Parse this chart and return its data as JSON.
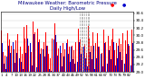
{
  "title": "Milwaukee Weather: Barometric Pressure",
  "subtitle": "Daily High/Low",
  "y_min": 29.0,
  "y_max": 30.65,
  "yticks": [
    29.0,
    29.2,
    29.4,
    29.6,
    29.8,
    30.0,
    30.2,
    30.4,
    30.6
  ],
  "bar_color_high": "#ff0000",
  "bar_color_low": "#0000cc",
  "background_color": "#ffffff",
  "plot_bg": "#ffffff",
  "highs": [
    30.12,
    29.55,
    29.45,
    29.75,
    30.05,
    29.88,
    29.72,
    30.18,
    29.62,
    29.85,
    30.02,
    29.78,
    29.68,
    29.48,
    30.22,
    29.92,
    30.28,
    29.72,
    30.12,
    29.55,
    30.38,
    30.08,
    29.52,
    30.18,
    29.88,
    29.65,
    29.95,
    29.82,
    30.08,
    29.72,
    29.48,
    29.38,
    29.92,
    30.22,
    30.32,
    29.82,
    29.65,
    30.08,
    29.52,
    29.78,
    29.62,
    30.12,
    29.88,
    29.68,
    30.02,
    29.72,
    29.58,
    29.82,
    29.62,
    30.18,
    29.88,
    29.68,
    30.02,
    29.75,
    29.52,
    30.25,
    29.92,
    29.72,
    30.08,
    29.48,
    29.78,
    30.05,
    29.68,
    29.88,
    29.52,
    30.15,
    29.82,
    29.62,
    29.98,
    29.72,
    29.88,
    30.18,
    29.58,
    29.78,
    30.08,
    29.92,
    29.75,
    30.05,
    29.62,
    29.85,
    30.12,
    29.72,
    29.55,
    30.15
  ],
  "lows": [
    29.78,
    29.22,
    29.08,
    29.42,
    29.72,
    29.52,
    29.38,
    29.82,
    29.25,
    29.52,
    29.68,
    29.38,
    29.28,
    29.08,
    29.88,
    29.52,
    29.92,
    29.32,
    29.78,
    29.18,
    30.02,
    29.68,
    29.12,
    29.82,
    29.48,
    29.28,
    29.62,
    29.42,
    29.72,
    29.32,
    29.08,
    29.02,
    29.58,
    29.88,
    30.0,
    29.45,
    29.25,
    29.72,
    29.15,
    29.42,
    29.25,
    29.78,
    29.5,
    29.28,
    29.68,
    29.35,
    29.22,
    29.45,
    29.28,
    29.82,
    29.5,
    29.28,
    29.68,
    29.38,
    29.15,
    29.88,
    29.55,
    29.35,
    29.72,
    29.08,
    29.38,
    29.68,
    29.28,
    29.48,
    29.15,
    29.78,
    29.42,
    29.22,
    29.58,
    29.35,
    29.48,
    29.82,
    29.18,
    29.38,
    29.72,
    29.55,
    29.32,
    29.68,
    29.22,
    29.48,
    29.75,
    29.35,
    29.18,
    29.78
  ],
  "dashed_cols": [
    50,
    51,
    52,
    53,
    54,
    55
  ],
  "x_tick_step": 3,
  "n_days": 84
}
